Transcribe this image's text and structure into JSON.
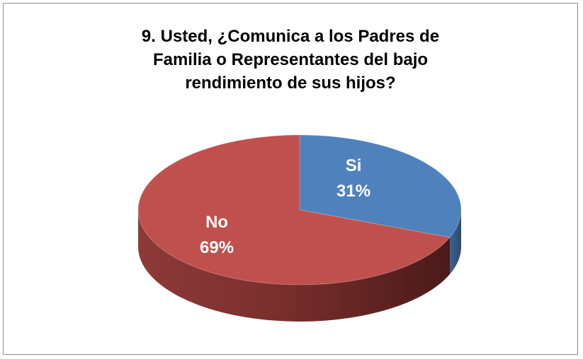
{
  "chart_data": {
    "type": "pie",
    "title_lines": [
      "9.    Usted, ¿Comunica a los Padres de",
      "Familia o Representantes del bajo",
      "rendimiento de sus hijos?"
    ],
    "slices": [
      {
        "name": "Si",
        "value": 31,
        "label": "31%",
        "color": "#4f81bd"
      },
      {
        "name": "No",
        "value": 69,
        "label": "69%",
        "color": "#c0504d"
      }
    ],
    "style": "3d",
    "legend": "none"
  }
}
